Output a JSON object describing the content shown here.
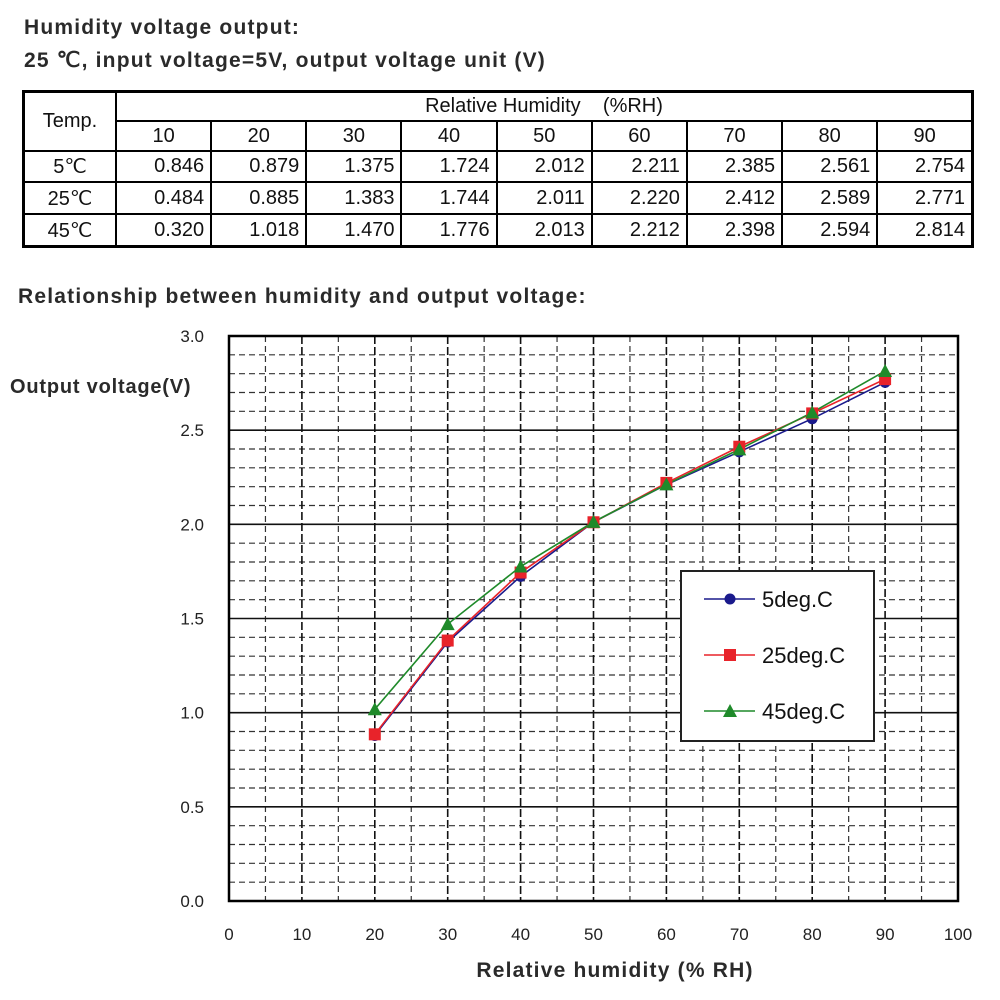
{
  "header": {
    "title": "Humidity voltage output:",
    "subtitle": "25 ℃, input voltage=5V, output voltage unit (V)"
  },
  "table": {
    "temp_header": "Temp.",
    "group_header": "Relative Humidity    (%RH)",
    "columns": [
      "10",
      "20",
      "30",
      "40",
      "50",
      "60",
      "70",
      "80",
      "90"
    ],
    "rows": [
      {
        "label": "5℃",
        "values": [
          "0.846",
          "0.879",
          "1.375",
          "1.724",
          "2.012",
          "2.211",
          "2.385",
          "2.561",
          "2.754"
        ]
      },
      {
        "label": "25℃",
        "values": [
          "0.484",
          "0.885",
          "1.383",
          "1.744",
          "2.011",
          "2.220",
          "2.412",
          "2.589",
          "2.771"
        ]
      },
      {
        "label": "45℃",
        "values": [
          "0.320",
          "1.018",
          "1.470",
          "1.776",
          "2.013",
          "2.212",
          "2.398",
          "2.594",
          "2.814"
        ]
      }
    ]
  },
  "section_title": "Relationship between humidity and output voltage:",
  "chart_data": {
    "type": "line",
    "title": "",
    "xlabel": "Relative humidity (% RH)",
    "ylabel": "Output voltage(V)",
    "xlim": [
      0,
      100
    ],
    "ylim": [
      0,
      3.0
    ],
    "x_ticks": [
      "0",
      "10",
      "20",
      "30",
      "40",
      "50",
      "60",
      "70",
      "80",
      "90",
      "100"
    ],
    "y_ticks": [
      "0.0",
      "0.5",
      "1.0",
      "1.5",
      "2.0",
      "2.5",
      "3.0"
    ],
    "grid": true,
    "legend_position": "right",
    "x": [
      20,
      30,
      40,
      50,
      60,
      70,
      80,
      90
    ],
    "series": [
      {
        "name": "5deg.C",
        "color": "#1a1a8c",
        "marker": "circle",
        "values": [
          0.879,
          1.375,
          1.724,
          2.012,
          2.211,
          2.385,
          2.561,
          2.754
        ]
      },
      {
        "name": "25deg.C",
        "color": "#e8232a",
        "marker": "square",
        "values": [
          0.885,
          1.383,
          1.744,
          2.011,
          2.22,
          2.412,
          2.589,
          2.771
        ]
      },
      {
        "name": "45deg.C",
        "color": "#1f8a2a",
        "marker": "triangle",
        "values": [
          1.018,
          1.47,
          1.776,
          2.013,
          2.212,
          2.398,
          2.594,
          2.814
        ]
      }
    ]
  }
}
